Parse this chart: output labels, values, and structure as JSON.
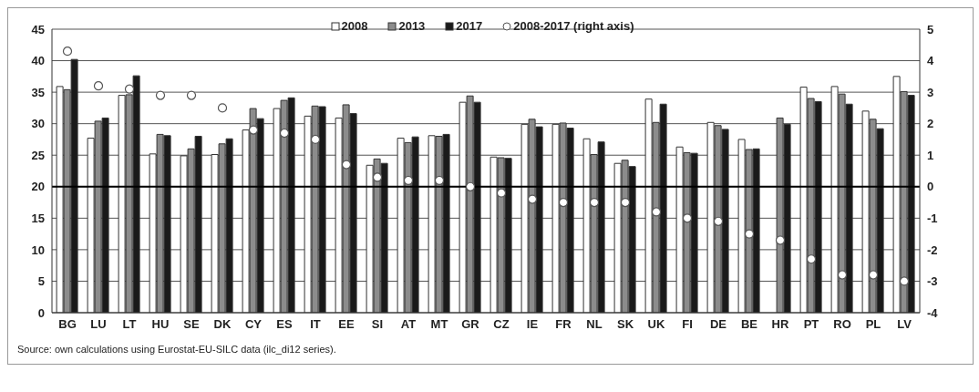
{
  "chart_data": {
    "type": "bar",
    "categories": [
      "BG",
      "LU",
      "LT",
      "HU",
      "SE",
      "DK",
      "CY",
      "ES",
      "IT",
      "EE",
      "SI",
      "AT",
      "MT",
      "GR",
      "CZ",
      "IE",
      "FR",
      "NL",
      "SK",
      "UK",
      "FI",
      "DE",
      "BE",
      "HR",
      "PT",
      "RO",
      "PL",
      "LV"
    ],
    "series": [
      {
        "name": "2008",
        "color": "#ffffff",
        "values": [
          35.9,
          27.7,
          34.5,
          25.2,
          24.9,
          25.1,
          29.0,
          32.4,
          31.2,
          30.9,
          23.4,
          27.7,
          28.1,
          33.4,
          24.7,
          29.9,
          29.9,
          27.6,
          23.7,
          33.9,
          26.3,
          30.2,
          27.5,
          null,
          35.8,
          35.9,
          32.0,
          37.5
        ]
      },
      {
        "name": "2013",
        "color": "#8c8c8c",
        "values": [
          35.4,
          30.4,
          34.6,
          28.3,
          26.0,
          26.8,
          32.4,
          33.7,
          32.8,
          33.0,
          24.4,
          27.0,
          28.0,
          34.4,
          24.6,
          30.7,
          30.1,
          25.1,
          24.2,
          30.2,
          25.4,
          29.7,
          25.9,
          30.9,
          34.0,
          34.7,
          30.7,
          35.1
        ]
      },
      {
        "name": "2017",
        "color": "#1a1a1a",
        "values": [
          40.2,
          30.9,
          37.6,
          28.1,
          28.0,
          27.6,
          30.8,
          34.1,
          32.7,
          31.6,
          23.7,
          27.9,
          28.3,
          33.4,
          24.5,
          29.5,
          29.3,
          27.1,
          23.2,
          33.1,
          25.3,
          29.1,
          26.0,
          29.9,
          33.5,
          33.1,
          29.2,
          34.5
        ]
      },
      {
        "name": "2008-2017 (right axis)",
        "type": "scatter",
        "axis": "y2",
        "marker": "circle",
        "color": "#ffffff",
        "values": [
          4.3,
          3.2,
          3.1,
          2.9,
          2.9,
          2.5,
          1.8,
          1.7,
          1.5,
          0.7,
          0.3,
          0.2,
          0.2,
          0.0,
          -0.2,
          -0.4,
          -0.5,
          -0.5,
          -0.5,
          -0.8,
          -1.0,
          -1.1,
          -1.5,
          -1.7,
          -2.3,
          -2.8,
          -2.8,
          -3.0
        ]
      }
    ],
    "ylim": [
      0,
      45
    ],
    "yticks": [
      0,
      5,
      10,
      15,
      20,
      25,
      30,
      35,
      40,
      45
    ],
    "y2lim": [
      -4,
      5
    ],
    "y2ticks": [
      -4,
      -3,
      -2,
      -1,
      0,
      1,
      2,
      3,
      4,
      5
    ],
    "ref_lines": [
      {
        "axis": "y",
        "value": 20,
        "color": "#000000"
      }
    ],
    "grid": "y",
    "legend": "top",
    "annotations": [
      "Source: own calculations using Eurostat-EU-SILC data (ilc_di12 series)."
    ]
  }
}
